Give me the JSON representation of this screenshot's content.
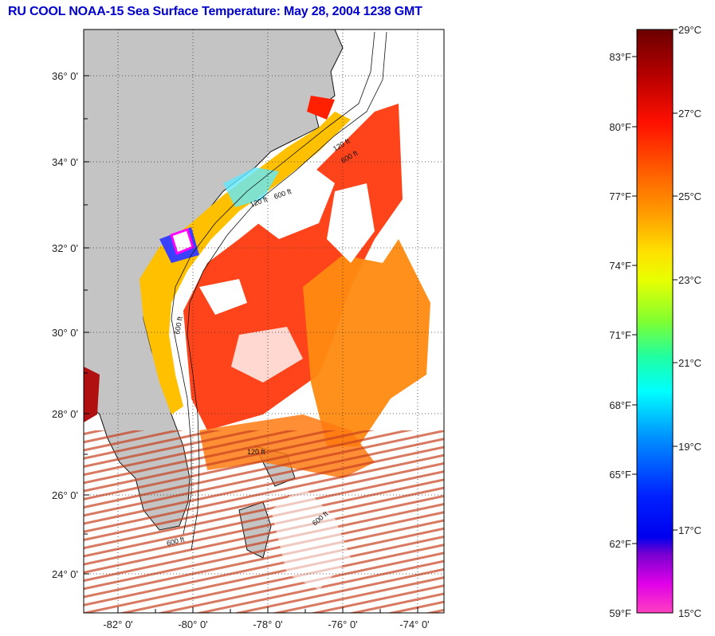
{
  "title": "RU COOL  NOAA-15  Sea Surface Temperature:  May 28, 2004 1238 GMT",
  "map": {
    "lat_labels": [
      "36° 0'",
      "34° 0'",
      "32° 0'",
      "30° 0'",
      "28° 0'",
      "26° 0'",
      "24° 0'"
    ],
    "lon_labels": [
      "-82° 0'",
      "-80° 0'",
      "-78° 0'",
      "-76° 0'",
      "-74° 0'"
    ],
    "isobath_labels": [
      "120 ft",
      "600 ft",
      "120 ft",
      "600 ft",
      "600 ft",
      "600 ft",
      "120 ft",
      "600 ft"
    ]
  },
  "colorbar": {
    "fahrenheit_labels": [
      "83°F",
      "80°F",
      "77°F",
      "74°F",
      "71°F",
      "68°F",
      "65°F",
      "62°F",
      "59°F"
    ],
    "celsius_labels": [
      "29°C",
      "27°C",
      "25°C",
      "23°C",
      "21°C",
      "19°C",
      "17°C",
      "15°C"
    ],
    "colors": [
      "#7a0000",
      "#c40000",
      "#ff1a00",
      "#ff6a00",
      "#ffaa00",
      "#ffe600",
      "#c8ff00",
      "#40ff40",
      "#00ffd0",
      "#00a8ff",
      "#0030ff",
      "#0000ff",
      "#8a00c8",
      "#ff00ff",
      "#ff50c8"
    ]
  }
}
